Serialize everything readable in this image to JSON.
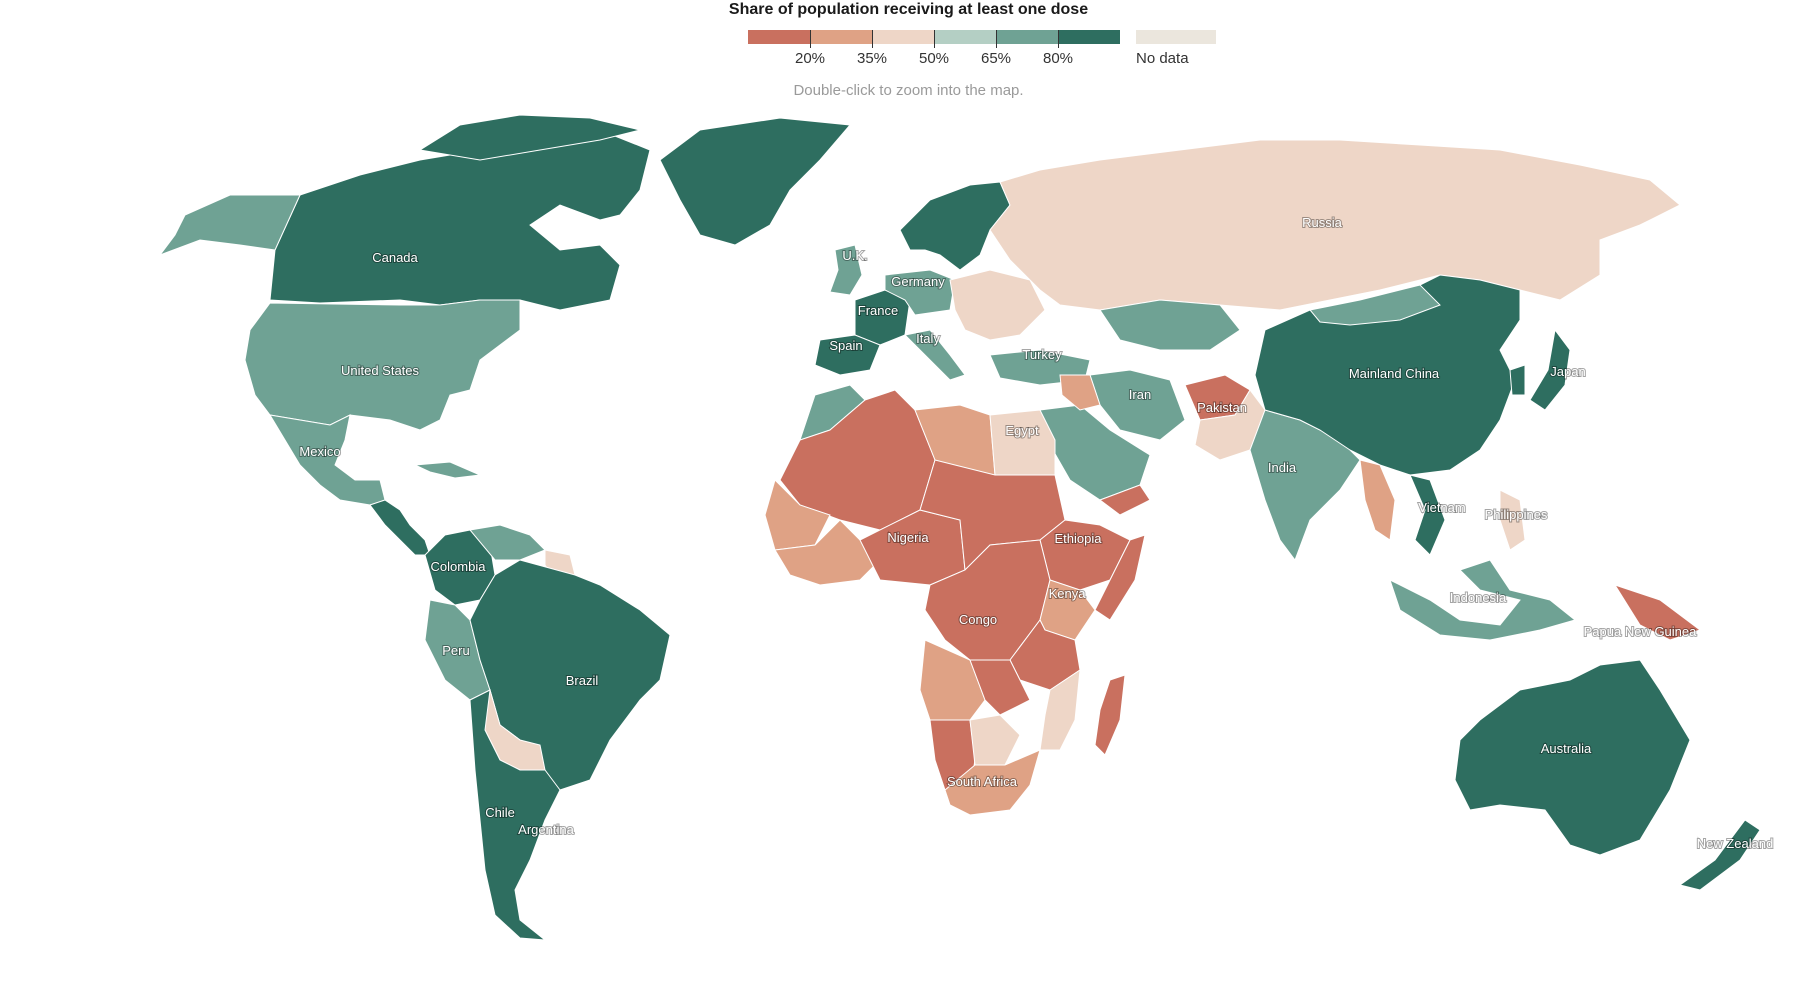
{
  "legend": {
    "title": "Share of population receiving at least one dose",
    "colors": [
      "#c9705f",
      "#dfa285",
      "#eed6c7",
      "#b4cfc4",
      "#6fa294",
      "#2e6e60"
    ],
    "ticks": [
      "20%",
      "35%",
      "50%",
      "65%",
      "80%"
    ],
    "nodata_label": "No data",
    "nodata_color": "#ebe6dd"
  },
  "hint": "Double-click to zoom into the map.",
  "labels": {
    "canada": "Canada",
    "united_states": "United States",
    "mexico": "Mexico",
    "colombia": "Colombia",
    "peru": "Peru",
    "brazil": "Brazil",
    "chile": "Chile",
    "argentina": "Argentina",
    "uk": "U.K.",
    "germany": "Germany",
    "france": "France",
    "spain": "Spain",
    "italy": "Italy",
    "turkey": "Turkey",
    "egypt": "Egypt",
    "nigeria": "Nigeria",
    "ethiopia": "Ethiopia",
    "kenya": "Kenya",
    "congo": "Congo",
    "south_africa": "South Africa",
    "russia": "Russia",
    "iran": "Iran",
    "pakistan": "Pakistan",
    "india": "India",
    "mainland_china": "Mainland China",
    "japan": "Japan",
    "vietnam": "Vietnam",
    "philippines": "Philippines",
    "indonesia": "Indonesia",
    "papua_new_guinea": "Papua New Guinea",
    "australia": "Australia",
    "new_zealand": "New Zealand"
  }
}
